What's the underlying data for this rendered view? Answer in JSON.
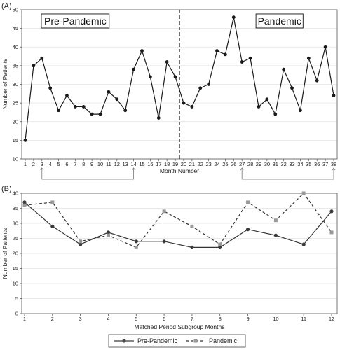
{
  "chart_data": [
    {
      "type": "line",
      "panel_label": "(A)",
      "xlabel": "Month Number",
      "ylabel": "Number of Patients",
      "xlim": [
        1,
        38
      ],
      "ylim": [
        10,
        50
      ],
      "yticks": [
        10,
        15,
        20,
        25,
        30,
        35,
        40,
        45,
        50
      ],
      "x": [
        1,
        2,
        3,
        4,
        5,
        6,
        7,
        8,
        9,
        10,
        11,
        12,
        13,
        14,
        15,
        16,
        17,
        18,
        19,
        20,
        21,
        22,
        23,
        24,
        25,
        26,
        27,
        28,
        29,
        30,
        31,
        32,
        33,
        34,
        35,
        36,
        37,
        38
      ],
      "series": [
        {
          "values": [
            15,
            35,
            37,
            29,
            23,
            27,
            24,
            24,
            22,
            22,
            28,
            26,
            23,
            34,
            39,
            32,
            21,
            36,
            32,
            25,
            24,
            29,
            30,
            39,
            38,
            48,
            36,
            37,
            24,
            26,
            22,
            34,
            29,
            23,
            37,
            31,
            40,
            27
          ],
          "color": "#1a1a1a",
          "style": "solid",
          "marker": "circle"
        }
      ],
      "divider_x": 19.5,
      "annotations": [
        {
          "text": "Pre-Pandemic",
          "x": 7,
          "y": 47
        },
        {
          "text": "Pandemic",
          "x": 31.5,
          "y": 47
        }
      ],
      "brackets": [
        {
          "from": 3,
          "to": 14
        },
        {
          "from": 27,
          "to": 38
        }
      ],
      "grid": "horizontal"
    },
    {
      "type": "line",
      "panel_label": "(B)",
      "xlabel": "Matched Period Subgroup Months",
      "ylabel": "Number of Patients",
      "xlim": [
        1,
        12
      ],
      "ylim": [
        0,
        40
      ],
      "yticks": [
        0,
        5,
        10,
        15,
        20,
        25,
        30,
        35,
        40
      ],
      "x": [
        1,
        2,
        3,
        4,
        5,
        6,
        7,
        8,
        9,
        10,
        11,
        12
      ],
      "series": [
        {
          "name": "Pre-Pandemic",
          "values": [
            37,
            29,
            23,
            27,
            24,
            24,
            22,
            22,
            28,
            26,
            23,
            34
          ],
          "color": "#3a3a3a",
          "style": "solid",
          "marker": "circle"
        },
        {
          "name": "Pandemic",
          "values": [
            36,
            37,
            24,
            26,
            22,
            34,
            29,
            23,
            37,
            31,
            40,
            27
          ],
          "color": "#999999",
          "style": "dashed",
          "marker": "square"
        }
      ],
      "legend_position": "bottom",
      "grid": "horizontal"
    }
  ]
}
